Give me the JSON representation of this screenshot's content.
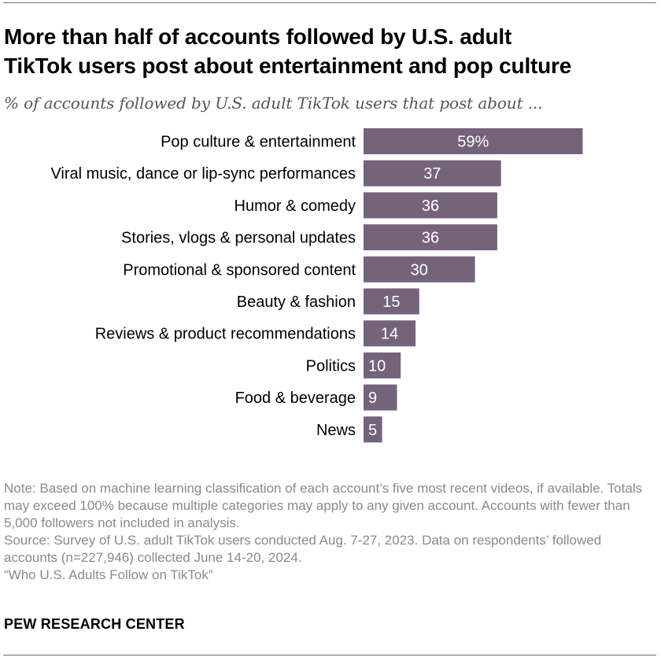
{
  "header": {
    "title_line1": "More than half of accounts followed by U.S. adult",
    "title_line2": "TikTok users post about entertainment and pop culture",
    "subtitle": "% of accounts followed by U.S. adult TikTok users that post about ..."
  },
  "chart_data": {
    "type": "bar",
    "orientation": "horizontal",
    "categories": [
      "Pop culture & entertainment",
      "Viral music, dance or lip-sync performances",
      "Humor & comedy",
      "Stories, vlogs & personal updates",
      "Promotional & sponsored content",
      "Beauty & fashion",
      "Reviews & product recommendations",
      "Politics",
      "Food & beverage",
      "News"
    ],
    "values": [
      59,
      37,
      36,
      36,
      30,
      15,
      14,
      10,
      9,
      5
    ],
    "value_labels": [
      "59%",
      "37",
      "36",
      "36",
      "30",
      "15",
      "14",
      "10",
      "9",
      "5"
    ],
    "bar_color": "#746479",
    "label_color": "#ffffff",
    "xlim": [
      0,
      100
    ],
    "grid": false
  },
  "footer": {
    "note": "Note: Based on machine learning classification of each account’s five most recent videos, if available. Totals may exceed 100% because multiple categories may apply to any given account. Accounts with fewer than 5,000 followers not included in analysis.",
    "source": "Source: Survey of U.S. adult TikTok users conducted Aug. 7-27, 2023. Data on respondents’ followed accounts (n=227,946) collected June 14-20, 2024.",
    "report": "“Who U.S. Adults Follow on TikTok”",
    "brand": "PEW RESEARCH CENTER"
  }
}
